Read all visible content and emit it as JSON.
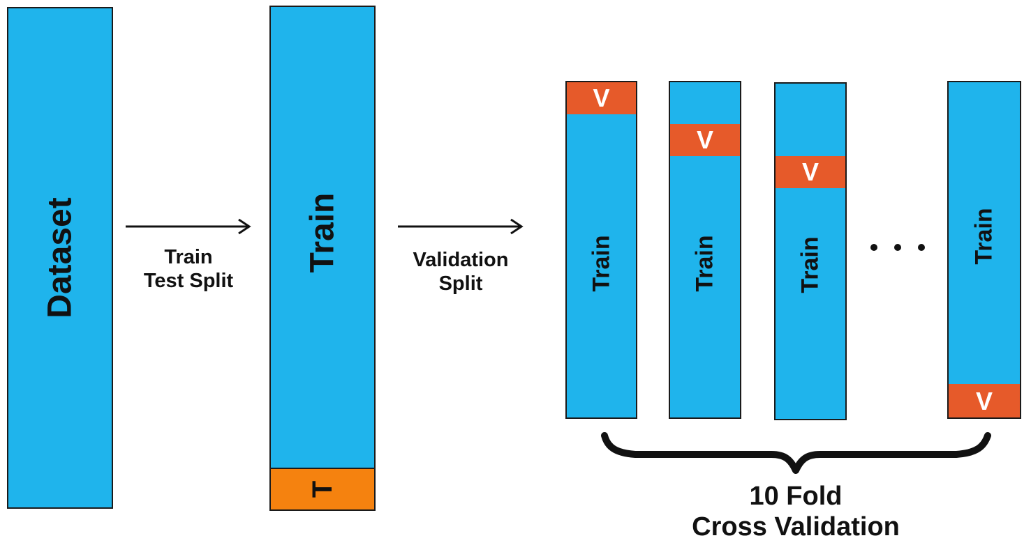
{
  "dataset": {
    "label": "Dataset"
  },
  "split1": {
    "line1": "Train",
    "line2": "Test Split"
  },
  "train_block": {
    "label": "Train",
    "test_label": "T"
  },
  "split2": {
    "line1": "Validation",
    "line2": "Split"
  },
  "folds": [
    {
      "label": "Train",
      "val_label": "V"
    },
    {
      "label": "Train",
      "val_label": "V"
    },
    {
      "label": "Train",
      "val_label": "V"
    },
    {
      "label": "Train",
      "val_label": "V"
    }
  ],
  "ellipsis": "…",
  "cv_caption": {
    "line1": "10 Fold",
    "line2": "Cross Validation"
  },
  "colors": {
    "train": "#1fb4ec",
    "validation": "#e65a2a",
    "test": "#f5820f"
  }
}
